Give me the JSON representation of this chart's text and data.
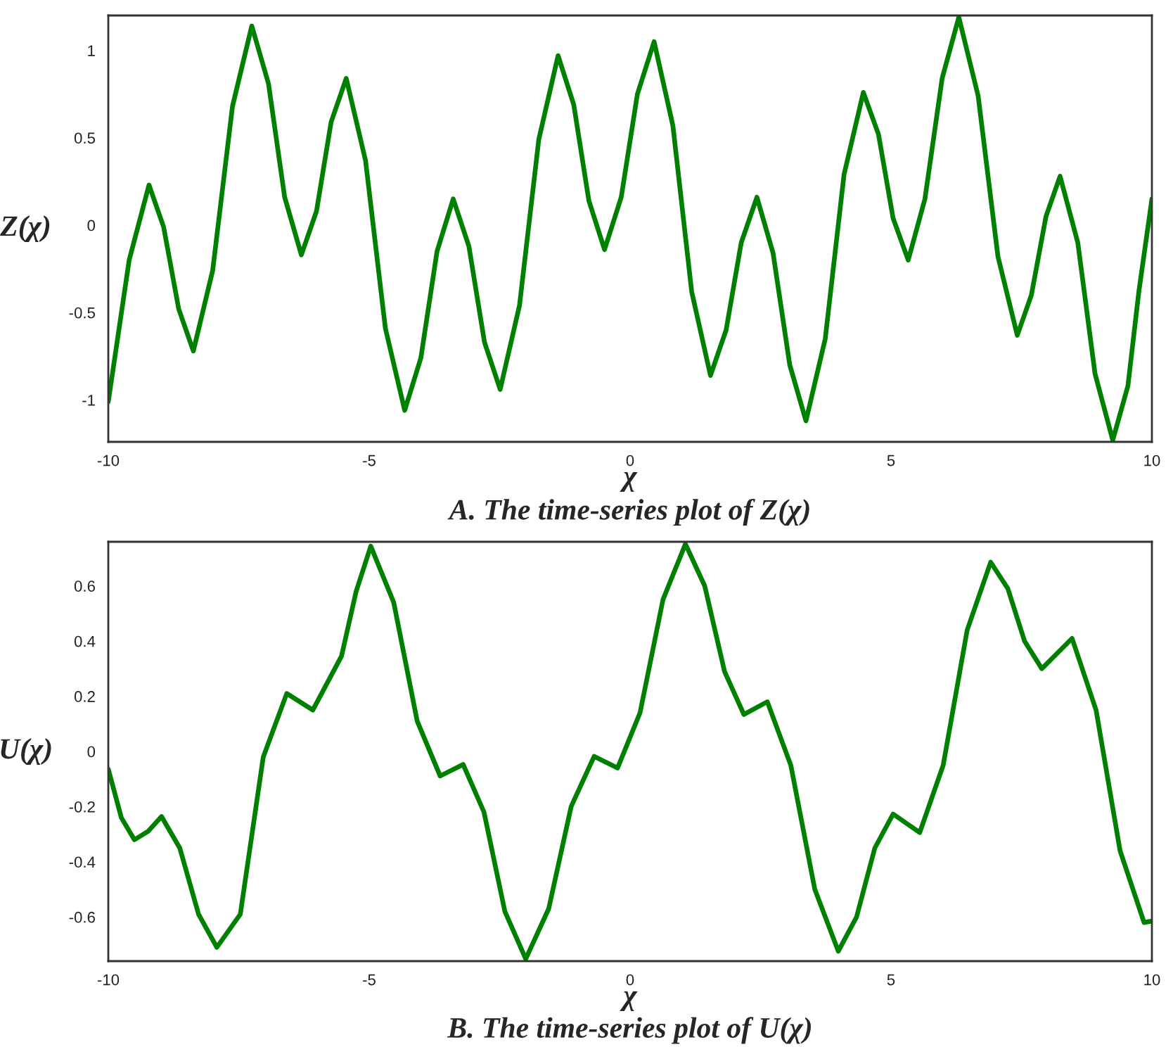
{
  "chart_data": [
    {
      "type": "line",
      "title": "A. The time-series plot of Z(χ)",
      "xlabel": "χ",
      "ylabel": "Z(χ)",
      "xlim": [
        -10,
        10
      ],
      "ylim": [
        -1.24,
        1.2
      ],
      "xticks": [
        -10,
        -5,
        0,
        5,
        10
      ],
      "yticks": [
        -1,
        -0.5,
        0,
        0.5,
        1
      ],
      "grid": false,
      "legend": false,
      "series": [
        {
          "color": "#008000",
          "x": [
            -10,
            -9.6,
            -9.22,
            -8.94,
            -8.65,
            -8.37,
            -8.0,
            -7.62,
            -7.25,
            -6.93,
            -6.62,
            -6.3,
            -6.01,
            -5.73,
            -5.44,
            -5.07,
            -4.69,
            -4.32,
            -4.01,
            -3.7,
            -3.39,
            -3.09,
            -2.79,
            -2.49,
            -2.12,
            -1.75,
            -1.38,
            -1.08,
            -0.79,
            -0.49,
            -0.17,
            0.14,
            0.46,
            0.82,
            1.18,
            1.54,
            1.84,
            2.13,
            2.43,
            2.74,
            3.06,
            3.37,
            3.74,
            4.1,
            4.47,
            4.76,
            5.04,
            5.33,
            5.65,
            5.98,
            6.3,
            6.67,
            7.05,
            7.42,
            7.69,
            7.97,
            8.24,
            8.58,
            8.91,
            9.25,
            9.54,
            9.75,
            10
          ],
          "values": [
            -1.01,
            -0.2,
            0.23,
            -0.01,
            -0.48,
            -0.72,
            -0.26,
            0.68,
            1.14,
            0.81,
            0.16,
            -0.17,
            0.08,
            0.59,
            0.84,
            0.37,
            -0.59,
            -1.06,
            -0.76,
            -0.15,
            0.15,
            -0.12,
            -0.67,
            -0.94,
            -0.46,
            0.49,
            0.97,
            0.69,
            0.14,
            -0.14,
            0.16,
            0.75,
            1.05,
            0.57,
            -0.38,
            -0.86,
            -0.6,
            -0.1,
            0.16,
            -0.16,
            -0.8,
            -1.12,
            -0.65,
            0.29,
            0.76,
            0.52,
            0.04,
            -0.2,
            0.15,
            0.84,
            1.19,
            0.74,
            -0.18,
            -0.63,
            -0.4,
            0.05,
            0.28,
            -0.1,
            -0.85,
            -1.23,
            -0.92,
            -0.38,
            0.15
          ]
        }
      ]
    },
    {
      "type": "line",
      "title": "B. The time-series plot of U(χ)",
      "xlabel": "χ",
      "ylabel": "U(χ)",
      "xlim": [
        -10,
        10
      ],
      "ylim": [
        -0.76,
        0.76
      ],
      "xticks": [
        -10,
        -5,
        0,
        5,
        10
      ],
      "yticks": [
        -0.6,
        -0.4,
        -0.2,
        0,
        0.2,
        0.4,
        0.6
      ],
      "grid": false,
      "legend": false,
      "series": [
        {
          "color": "#008000",
          "x": [
            -10,
            -9.75,
            -9.5,
            -9.24,
            -8.98,
            -8.63,
            -8.27,
            -7.92,
            -7.47,
            -7.03,
            -6.58,
            -6.08,
            -5.53,
            -5.25,
            -4.97,
            -4.53,
            -4.08,
            -3.64,
            -3.2,
            -2.8,
            -2.4,
            -2.0,
            -1.56,
            -1.13,
            -0.69,
            -0.24,
            0.19,
            0.63,
            1.06,
            1.43,
            1.81,
            2.18,
            2.63,
            3.08,
            3.54,
            3.99,
            4.34,
            4.69,
            5.04,
            5.55,
            6.0,
            6.46,
            6.91,
            7.24,
            7.56,
            7.89,
            8.47,
            8.93,
            9.39,
            9.85,
            10
          ],
          "values": [
            -0.064,
            -0.24,
            -0.32,
            -0.29,
            -0.236,
            -0.35,
            -0.59,
            -0.71,
            -0.59,
            -0.02,
            0.21,
            0.15,
            0.346,
            0.58,
            0.744,
            0.54,
            0.11,
            -0.089,
            -0.047,
            -0.22,
            -0.58,
            -0.752,
            -0.57,
            -0.2,
            -0.018,
            -0.06,
            0.14,
            0.55,
            0.752,
            0.6,
            0.29,
            0.134,
            0.18,
            -0.05,
            -0.5,
            -0.724,
            -0.6,
            -0.35,
            -0.227,
            -0.294,
            -0.05,
            0.44,
            0.686,
            0.59,
            0.4,
            0.3,
            0.41,
            0.15,
            -0.36,
            -0.62,
            -0.615
          ]
        }
      ]
    }
  ]
}
